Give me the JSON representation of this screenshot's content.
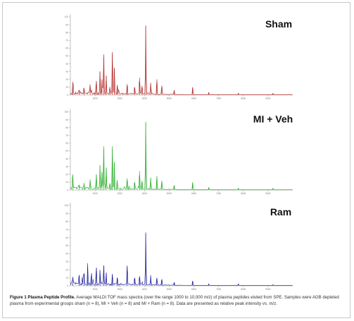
{
  "figure": {
    "caption_title": "Figure 1 Plasma Peptide Profile.",
    "caption_text": "Average MALDI TOF mass spectra (over the range 1000 to 10,000 m/z) of plasma peptides eluted from SPE. Samples were AGB depleted plasma from experimental groups sham (n = 8), MI + Veh (n = 8) and MI + Ram (n = 8). Data are presented as relative peak intensity vs. m/z."
  },
  "chart_data": [
    {
      "type": "line",
      "label": "Sham",
      "color": "#b22222",
      "xlim": [
        1000,
        10000
      ],
      "ylim": [
        0,
        100
      ],
      "x_ticks": [
        2000,
        3000,
        4000,
        5000,
        6000,
        7000,
        8000,
        9000
      ],
      "y_ticks": [
        0,
        10,
        20,
        30,
        40,
        50,
        60,
        70,
        80,
        90,
        100
      ],
      "peaks": [
        {
          "x": 1100,
          "y": 15
        },
        {
          "x": 1350,
          "y": 6
        },
        {
          "x": 1550,
          "y": 7
        },
        {
          "x": 1800,
          "y": 12
        },
        {
          "x": 2050,
          "y": 18
        },
        {
          "x": 2200,
          "y": 30
        },
        {
          "x": 2280,
          "y": 20
        },
        {
          "x": 2350,
          "y": 52
        },
        {
          "x": 2450,
          "y": 25
        },
        {
          "x": 2600,
          "y": 8
        },
        {
          "x": 2700,
          "y": 55
        },
        {
          "x": 2780,
          "y": 35
        },
        {
          "x": 2900,
          "y": 12
        },
        {
          "x": 3300,
          "y": 14
        },
        {
          "x": 3600,
          "y": 10
        },
        {
          "x": 3800,
          "y": 22
        },
        {
          "x": 3900,
          "y": 12
        },
        {
          "x": 4050,
          "y": 88
        },
        {
          "x": 4250,
          "y": 15
        },
        {
          "x": 4500,
          "y": 20
        },
        {
          "x": 4700,
          "y": 12
        },
        {
          "x": 5200,
          "y": 6
        },
        {
          "x": 5950,
          "y": 10
        },
        {
          "x": 6600,
          "y": 3
        },
        {
          "x": 7800,
          "y": 2
        },
        {
          "x": 9200,
          "y": 2
        }
      ]
    },
    {
      "type": "line",
      "label": "MI + Veh",
      "color": "#22aa22",
      "xlim": [
        1000,
        10000
      ],
      "ylim": [
        0,
        100
      ],
      "x_ticks": [
        2000,
        3000,
        4000,
        5000,
        6000,
        7000,
        8000,
        9000
      ],
      "y_ticks": [
        0,
        10,
        20,
        30,
        40,
        50,
        60,
        70,
        80,
        90,
        100
      ],
      "peaks": [
        {
          "x": 1100,
          "y": 16
        },
        {
          "x": 1350,
          "y": 6
        },
        {
          "x": 1550,
          "y": 6
        },
        {
          "x": 1800,
          "y": 12
        },
        {
          "x": 2050,
          "y": 20
        },
        {
          "x": 2200,
          "y": 32
        },
        {
          "x": 2280,
          "y": 22
        },
        {
          "x": 2350,
          "y": 56
        },
        {
          "x": 2450,
          "y": 28
        },
        {
          "x": 2600,
          "y": 8
        },
        {
          "x": 2700,
          "y": 56
        },
        {
          "x": 2780,
          "y": 36
        },
        {
          "x": 2900,
          "y": 12
        },
        {
          "x": 3300,
          "y": 15
        },
        {
          "x": 3600,
          "y": 10
        },
        {
          "x": 3800,
          "y": 24
        },
        {
          "x": 3900,
          "y": 12
        },
        {
          "x": 4050,
          "y": 86
        },
        {
          "x": 4250,
          "y": 15
        },
        {
          "x": 4500,
          "y": 18
        },
        {
          "x": 4700,
          "y": 12
        },
        {
          "x": 5200,
          "y": 6
        },
        {
          "x": 5950,
          "y": 10
        },
        {
          "x": 6600,
          "y": 3
        },
        {
          "x": 7800,
          "y": 2
        },
        {
          "x": 9200,
          "y": 2
        }
      ]
    },
    {
      "type": "line",
      "label": "Ram",
      "color": "#1a1a9a",
      "xlim": [
        1000,
        10000
      ],
      "ylim": [
        0,
        100
      ],
      "x_ticks": [
        2000,
        3000,
        4000,
        5000,
        6000,
        7000,
        8000,
        9000
      ],
      "y_ticks": [
        0,
        10,
        20,
        30,
        40,
        50,
        60,
        70,
        80,
        90,
        100
      ],
      "peaks": [
        {
          "x": 1100,
          "y": 10
        },
        {
          "x": 1350,
          "y": 12
        },
        {
          "x": 1550,
          "y": 15
        },
        {
          "x": 1700,
          "y": 20
        },
        {
          "x": 1850,
          "y": 14
        },
        {
          "x": 2050,
          "y": 22
        },
        {
          "x": 2200,
          "y": 18
        },
        {
          "x": 2350,
          "y": 25
        },
        {
          "x": 2450,
          "y": 16
        },
        {
          "x": 2700,
          "y": 14
        },
        {
          "x": 2900,
          "y": 10
        },
        {
          "x": 3300,
          "y": 25
        },
        {
          "x": 3600,
          "y": 10
        },
        {
          "x": 3800,
          "y": 12
        },
        {
          "x": 4050,
          "y": 65
        },
        {
          "x": 4250,
          "y": 12
        },
        {
          "x": 4500,
          "y": 10
        },
        {
          "x": 4700,
          "y": 8
        },
        {
          "x": 5200,
          "y": 4
        },
        {
          "x": 5950,
          "y": 6
        },
        {
          "x": 6600,
          "y": 2
        },
        {
          "x": 7800,
          "y": 2
        },
        {
          "x": 9200,
          "y": 1
        }
      ]
    }
  ]
}
